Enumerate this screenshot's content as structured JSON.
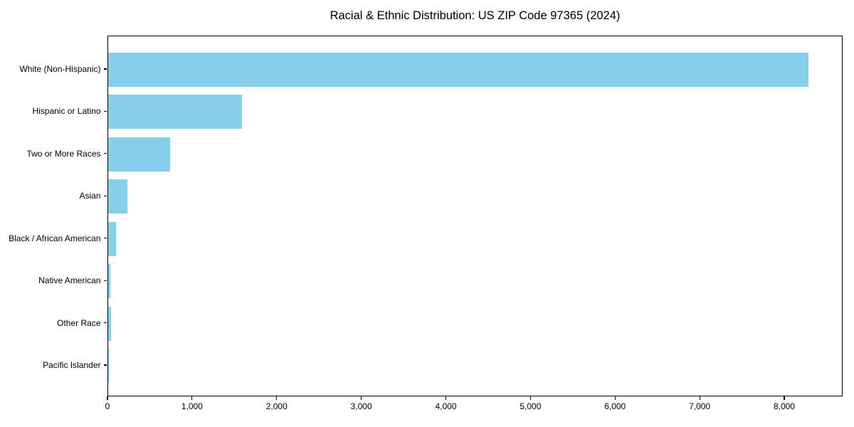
{
  "chart_data": {
    "type": "bar",
    "orientation": "horizontal",
    "title": "Racial & Ethnic Distribution: US ZIP Code 97365 (2024)",
    "categories": [
      "White (Non-Hispanic)",
      "Hispanic or Latino",
      "Two or More Races",
      "Asian",
      "Black / African American",
      "Native American",
      "Other Race",
      "Pacific Islander"
    ],
    "values": [
      8280,
      1585,
      730,
      230,
      92,
      28,
      30,
      5
    ],
    "bar_color": "#87CEEB",
    "xlim": [
      0,
      8690
    ],
    "xticks": [
      0,
      1000,
      2000,
      3000,
      4000,
      5000,
      6000,
      7000,
      8000
    ],
    "xtick_labels": [
      "0",
      "1,000",
      "2,000",
      "3,000",
      "4,000",
      "5,000",
      "6,000",
      "7,000",
      "8,000"
    ],
    "xlabel": "",
    "ylabel": "",
    "grid": false,
    "legend": null,
    "axis_color": "#000000",
    "background_color": "#ffffff"
  }
}
